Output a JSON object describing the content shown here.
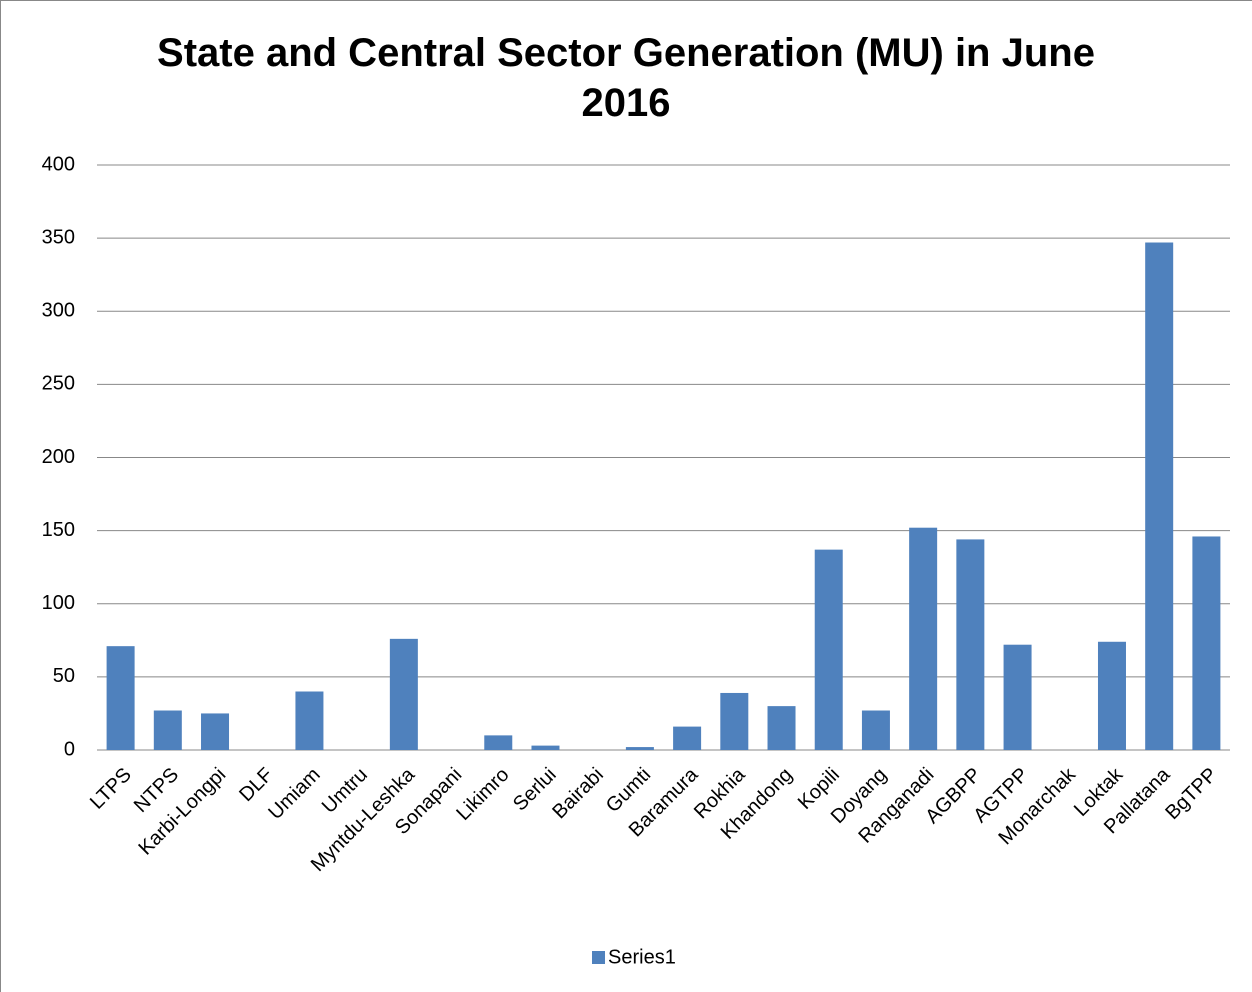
{
  "chart_data": {
    "type": "bar",
    "title": "State and Central Sector Generation (MU) in June 2016",
    "categories": [
      "LTPS",
      "NTPS",
      "Karbi-Longpi",
      "DLF",
      "Umiam",
      "Umtru",
      "Myntdu-Leshka",
      "Sonapani",
      "Likimro",
      "Serlui",
      "Bairabi",
      "Gumti",
      "Baramura",
      "Rokhia",
      "Khandong",
      "Kopili",
      "Doyang",
      "Ranganadi",
      "AGBPP",
      "AGTPP",
      "Monarchak",
      "Loktak",
      "Pallatana",
      "BgTPP"
    ],
    "series": [
      {
        "name": "Series1",
        "color": "#4f81bd",
        "values": [
          71,
          27,
          25,
          0,
          40,
          0,
          76,
          0,
          10,
          3,
          0,
          2,
          16,
          39,
          30,
          137,
          27,
          152,
          144,
          72,
          0,
          74,
          347,
          146
        ]
      }
    ],
    "ylim": [
      0,
      400
    ],
    "yticks": [
      0,
      50,
      100,
      150,
      200,
      250,
      300,
      350,
      400
    ],
    "grid": true,
    "legend": "bottom"
  }
}
